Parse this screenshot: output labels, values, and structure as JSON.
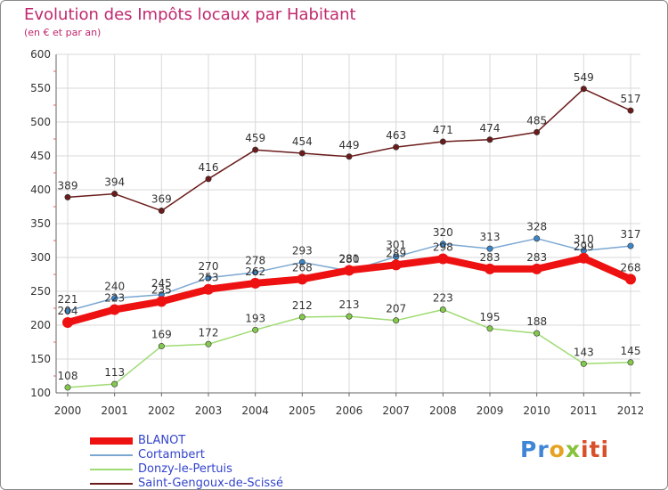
{
  "title": "Evolution des Impôts locaux par Habitant",
  "subtitle": "(en € et par an)",
  "brand": {
    "parts": [
      "Pr",
      "o",
      "x",
      "iti"
    ],
    "text": "Proxiti"
  },
  "chart_data": {
    "type": "line",
    "title": "Evolution des Impôts locaux par Habitant",
    "subtitle": "(en € et par an)",
    "xlabel": "",
    "ylabel": "",
    "x": [
      "2000",
      "2001",
      "2002",
      "2003",
      "2004",
      "2005",
      "2006",
      "2007",
      "2008",
      "2009",
      "2010",
      "2011",
      "2012"
    ],
    "ylim": [
      100,
      600
    ],
    "yticks": [
      100,
      150,
      200,
      250,
      300,
      350,
      400,
      450,
      500,
      550,
      600
    ],
    "grid": true,
    "legend_position": "bottom-left",
    "series": [
      {
        "name": "Saint-Gengoux-de-Scissé",
        "color": "#6b1b1b",
        "width": 1.5,
        "marker": "#6b1b1b",
        "values": [
          389,
          394,
          369,
          416,
          459,
          454,
          449,
          463,
          471,
          474,
          485,
          549,
          517
        ]
      },
      {
        "name": "Cortambert",
        "color": "#7ba7d1",
        "width": 1.5,
        "marker": "#3c86c8",
        "values": [
          221,
          240,
          245,
          270,
          278,
          293,
          280,
          301,
          320,
          313,
          328,
          310,
          317
        ]
      },
      {
        "name": "Donzy-le-Pertuis",
        "color": "#9edb72",
        "width": 1.5,
        "marker": "#84c84e",
        "values": [
          108,
          113,
          169,
          172,
          193,
          212,
          213,
          207,
          223,
          195,
          188,
          143,
          145
        ]
      },
      {
        "name": "BLANOT",
        "color": "#ee1111",
        "width": 8,
        "marker": "#ee1111",
        "values": [
          204,
          223,
          235,
          253,
          262,
          268,
          281,
          289,
          298,
          283,
          283,
          299,
          268
        ]
      }
    ],
    "legend": [
      {
        "name": "BLANOT",
        "color": "#ee1111"
      },
      {
        "name": "Cortambert",
        "color": "#7ba7d1"
      },
      {
        "name": "Donzy-le-Pertuis",
        "color": "#9edb72"
      },
      {
        "name": "Saint-Gengoux-de-Scissé",
        "color": "#6b1b1b"
      }
    ]
  }
}
